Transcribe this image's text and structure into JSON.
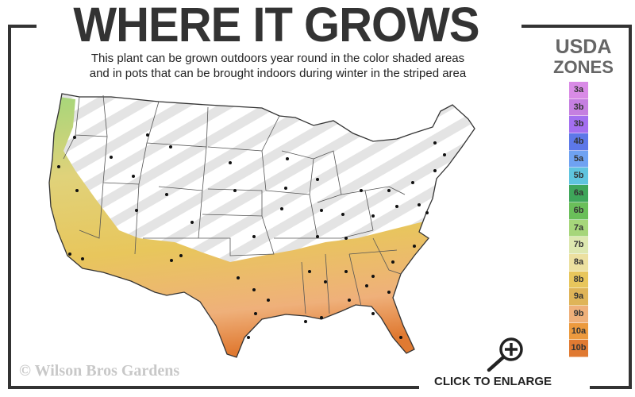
{
  "header": {
    "title": "WHERE IT GROWS",
    "subtitle_line1": "This plant can be grown outdoors year round in the color shaded areas",
    "subtitle_line2": "and in pots that can be brought indoors during winter in the striped area"
  },
  "legend": {
    "title_line1": "USDA",
    "title_line2": "ZONES",
    "zones": [
      {
        "label": "3a",
        "color": "#d98be6"
      },
      {
        "label": "3b",
        "color": "#c57fe0"
      },
      {
        "label": "3b",
        "color": "#a36ff0"
      },
      {
        "label": "4b",
        "color": "#5d78e8"
      },
      {
        "label": "5a",
        "color": "#6fa2f2"
      },
      {
        "label": "5b",
        "color": "#5fc4de"
      },
      {
        "label": "6a",
        "color": "#3ea65a"
      },
      {
        "label": "6b",
        "color": "#6abf5a"
      },
      {
        "label": "7a",
        "color": "#a6d67a"
      },
      {
        "label": "7b",
        "color": "#dde8b0"
      },
      {
        "label": "8a",
        "color": "#ece0a0"
      },
      {
        "label": "8b",
        "color": "#e8c65c"
      },
      {
        "label": "9a",
        "color": "#dfb458"
      },
      {
        "label": "9b",
        "color": "#efb07a"
      },
      {
        "label": "10a",
        "color": "#ec9a3e"
      },
      {
        "label": "10b",
        "color": "#e07a32"
      }
    ]
  },
  "map": {
    "growing_zone_colors": [
      "#a6d67a",
      "#e8c65c",
      "#efb07a",
      "#e07a32"
    ],
    "striped_area_color": "#e4e4e4"
  },
  "footer": {
    "copyright": "© Wilson Bros Gardens",
    "enlarge_label": "CLICK TO ENLARGE",
    "enlarge_icon": "zoom-in-magnifier-icon"
  }
}
